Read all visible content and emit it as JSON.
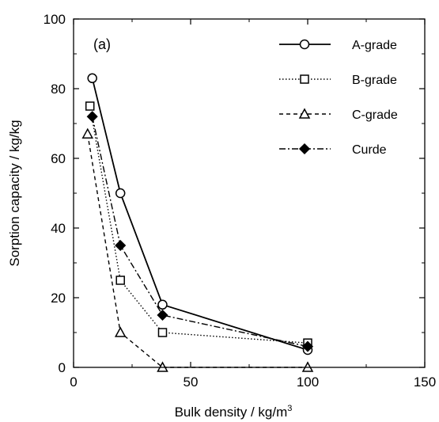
{
  "chart_data": {
    "type": "line",
    "panel_label": "(a)",
    "xlabel": "Bulk density / kg/m",
    "xlabel_sup": "3",
    "ylabel": "Sorption capacity / kg/kg",
    "xlim": [
      0,
      150
    ],
    "ylim": [
      0,
      100
    ],
    "xticks": [
      0,
      50,
      100,
      150
    ],
    "yticks": [
      0,
      20,
      40,
      60,
      80,
      100
    ],
    "grid": false,
    "legend_position": "top-right",
    "series": [
      {
        "name": "A-grade",
        "marker": "circle-open",
        "line": "solid",
        "x": [
          8,
          20,
          38,
          100
        ],
        "y": [
          83,
          50,
          18,
          5
        ]
      },
      {
        "name": "B-grade",
        "marker": "square-open",
        "line": "dotted",
        "x": [
          7,
          20,
          38,
          100
        ],
        "y": [
          75,
          25,
          10,
          7
        ]
      },
      {
        "name": "C-grade",
        "marker": "triangle-open",
        "line": "dashed",
        "x": [
          6,
          20,
          38,
          100
        ],
        "y": [
          67,
          10,
          0,
          0
        ]
      },
      {
        "name": "Curde",
        "marker": "diamond-filled",
        "line": "dashdot",
        "x": [
          8,
          20,
          38,
          100
        ],
        "y": [
          72,
          35,
          15,
          6
        ]
      }
    ]
  }
}
